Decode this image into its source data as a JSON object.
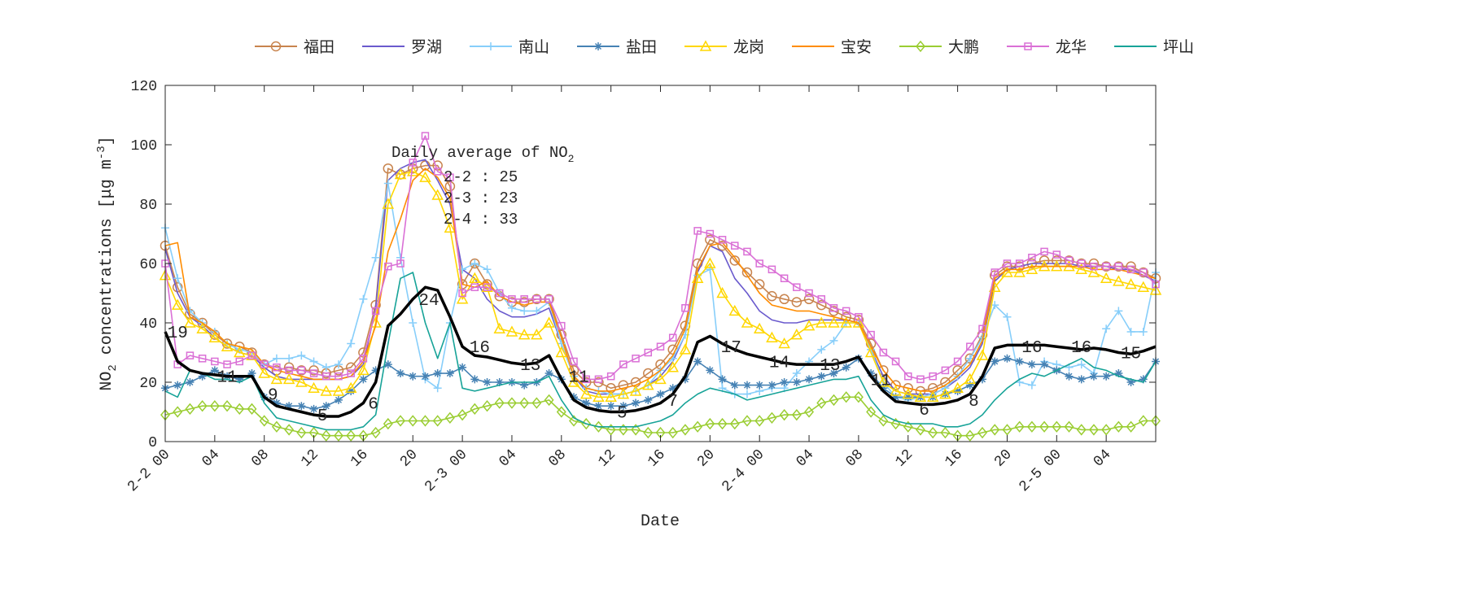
{
  "chart_data": {
    "type": "line",
    "xlabel": "Date",
    "ylabel": "NO2 concentrations [μg m-3]",
    "ylabel_parts": {
      "pre": "NO",
      "sub": "2",
      "mid": " concentrations [μg m",
      "sup": "-3",
      "post": "]"
    },
    "ylim": [
      0,
      120
    ],
    "yticks": [
      0,
      20,
      40,
      60,
      80,
      100,
      120
    ],
    "xlim_hours": [
      0,
      80
    ],
    "xticks": [
      {
        "h": 0,
        "label": "2-2 00"
      },
      {
        "h": 4,
        "label": "04"
      },
      {
        "h": 8,
        "label": "08"
      },
      {
        "h": 12,
        "label": "12"
      },
      {
        "h": 16,
        "label": "16"
      },
      {
        "h": 20,
        "label": "20"
      },
      {
        "h": 24,
        "label": "2-3 00"
      },
      {
        "h": 28,
        "label": "04"
      },
      {
        "h": 32,
        "label": "08"
      },
      {
        "h": 36,
        "label": "12"
      },
      {
        "h": 40,
        "label": "16"
      },
      {
        "h": 44,
        "label": "20"
      },
      {
        "h": 48,
        "label": "2-4 00"
      },
      {
        "h": 52,
        "label": "04"
      },
      {
        "h": 56,
        "label": "08"
      },
      {
        "h": 60,
        "label": "12"
      },
      {
        "h": 64,
        "label": "16"
      },
      {
        "h": 68,
        "label": "20"
      },
      {
        "h": 72,
        "label": "2-5 00"
      },
      {
        "h": 76,
        "label": "04"
      }
    ],
    "grid": false,
    "legend_placement": "top-outside",
    "series": [
      {
        "name": "福田",
        "color": "#C8844E",
        "marker": "circle",
        "values": [
          66,
          52,
          43,
          40,
          36,
          33,
          32,
          30,
          26,
          24,
          25,
          24,
          24,
          23,
          24,
          25,
          30,
          46,
          92,
          90,
          92,
          93,
          93,
          86,
          53,
          60,
          53,
          49,
          47,
          47,
          48,
          48,
          36,
          24,
          20,
          20,
          18,
          19,
          20,
          23,
          26,
          31,
          39,
          60,
          68,
          66,
          61,
          57,
          53,
          49,
          48,
          47,
          48,
          46,
          44,
          42,
          41,
          33,
          24,
          19,
          18,
          17,
          18,
          20,
          24,
          28,
          36,
          56,
          59,
          59,
          60,
          61,
          61,
          61,
          60,
          60,
          59,
          59,
          59,
          57,
          55
        ]
      },
      {
        "name": "罗湖",
        "color": "#6A5ACD",
        "marker": "none",
        "values": [
          65,
          50,
          42,
          39,
          35,
          32,
          30,
          29,
          25,
          22,
          21,
          21,
          21,
          21,
          21,
          22,
          26,
          45,
          88,
          92,
          94,
          95,
          88,
          80,
          58,
          55,
          48,
          44,
          42,
          42,
          43,
          45,
          33,
          22,
          17,
          16,
          16,
          16,
          17,
          19,
          22,
          27,
          36,
          57,
          66,
          64,
          55,
          50,
          44,
          41,
          40,
          40,
          41,
          41,
          41,
          41,
          40,
          31,
          22,
          17,
          16,
          16,
          16,
          18,
          21,
          25,
          33,
          54,
          58,
          59,
          60,
          60,
          60,
          60,
          59,
          59,
          59,
          58,
          58,
          56,
          54
        ]
      },
      {
        "name": "南山",
        "color": "#87CEFA",
        "marker": "plus",
        "values": [
          72,
          55,
          44,
          40,
          37,
          33,
          31,
          30,
          26,
          28,
          28,
          29,
          27,
          25,
          26,
          33,
          48,
          62,
          87,
          62,
          40,
          21,
          18,
          40,
          58,
          60,
          58,
          50,
          45,
          44,
          44,
          47,
          33,
          22,
          18,
          17,
          16,
          16,
          17,
          19,
          24,
          28,
          36,
          56,
          58,
          18,
          16,
          16,
          17,
          18,
          18,
          23,
          27,
          31,
          34,
          40,
          40,
          31,
          20,
          15,
          14,
          15,
          16,
          18,
          22,
          28,
          35,
          46,
          42,
          20,
          19,
          27,
          26,
          25,
          26,
          23,
          38,
          44,
          37,
          37,
          57
        ]
      },
      {
        "name": "盐田",
        "color": "#4682B4",
        "marker": "star",
        "values": [
          18,
          19,
          20,
          22,
          24,
          22,
          21,
          23,
          15,
          13,
          12,
          12,
          11,
          12,
          14,
          17,
          21,
          24,
          26,
          23,
          22,
          22,
          23,
          23,
          25,
          21,
          20,
          20,
          20,
          19,
          20,
          23,
          21,
          15,
          13,
          12,
          12,
          12,
          13,
          14,
          16,
          18,
          21,
          27,
          24,
          21,
          19,
          19,
          19,
          19,
          20,
          20,
          21,
          22,
          23,
          25,
          28,
          23,
          18,
          15,
          15,
          15,
          15,
          16,
          17,
          19,
          21,
          27,
          28,
          27,
          26,
          26,
          24,
          22,
          21,
          22,
          22,
          23,
          20,
          21,
          27
        ]
      },
      {
        "name": "龙岗",
        "color": "#FFD700",
        "marker": "triangle",
        "values": [
          56,
          46,
          40,
          38,
          35,
          32,
          30,
          29,
          23,
          21,
          21,
          20,
          18,
          17,
          17,
          18,
          24,
          40,
          80,
          90,
          91,
          89,
          83,
          72,
          48,
          55,
          52,
          38,
          37,
          36,
          36,
          40,
          30,
          20,
          16,
          15,
          15,
          16,
          17,
          19,
          21,
          25,
          31,
          55,
          60,
          50,
          44,
          40,
          38,
          35,
          33,
          36,
          39,
          40,
          40,
          40,
          40,
          30,
          20,
          17,
          16,
          15,
          15,
          16,
          18,
          21,
          29,
          52,
          57,
          57,
          58,
          59,
          59,
          59,
          58,
          57,
          55,
          54,
          53,
          52,
          51
        ]
      },
      {
        "name": "宝安",
        "color": "#FF8C00",
        "marker": "none",
        "values": [
          66,
          67,
          42,
          40,
          37,
          33,
          32,
          31,
          26,
          24,
          23,
          22,
          21,
          21,
          21,
          22,
          27,
          39,
          64,
          75,
          88,
          92,
          89,
          82,
          53,
          52,
          54,
          49,
          47,
          46,
          47,
          47,
          35,
          22,
          18,
          17,
          17,
          18,
          19,
          21,
          24,
          29,
          38,
          58,
          66,
          67,
          62,
          56,
          50,
          46,
          45,
          44,
          44,
          43,
          42,
          41,
          40,
          32,
          24,
          19,
          18,
          17,
          17,
          19,
          22,
          26,
          34,
          55,
          58,
          58,
          59,
          59,
          59,
          59,
          59,
          58,
          58,
          58,
          57,
          56,
          55
        ]
      },
      {
        "name": "大鹏",
        "color": "#9ACD32",
        "marker": "diamond",
        "values": [
          9,
          10,
          11,
          12,
          12,
          12,
          11,
          11,
          7,
          5,
          4,
          3,
          3,
          2,
          2,
          2,
          2,
          3,
          6,
          7,
          7,
          7,
          7,
          8,
          9,
          11,
          12,
          13,
          13,
          13,
          13,
          14,
          10,
          7,
          6,
          5,
          4,
          4,
          4,
          3,
          3,
          3,
          4,
          5,
          6,
          6,
          6,
          7,
          7,
          8,
          9,
          9,
          10,
          13,
          14,
          15,
          15,
          10,
          7,
          6,
          5,
          4,
          3,
          3,
          2,
          2,
          3,
          4,
          4,
          5,
          5,
          5,
          5,
          5,
          4,
          4,
          4,
          5,
          5,
          7,
          7
        ]
      },
      {
        "name": "龙华",
        "color": "#DA70D6",
        "marker": "square",
        "values": [
          60,
          26,
          29,
          28,
          27,
          26,
          27,
          29,
          26,
          25,
          24,
          24,
          23,
          22,
          22,
          23,
          28,
          44,
          59,
          60,
          94,
          103,
          91,
          89,
          50,
          52,
          52,
          50,
          48,
          48,
          48,
          48,
          39,
          27,
          21,
          21,
          22,
          26,
          28,
          30,
          32,
          35,
          45,
          71,
          70,
          68,
          66,
          64,
          60,
          58,
          55,
          52,
          50,
          48,
          45,
          44,
          42,
          36,
          30,
          27,
          22,
          21,
          22,
          24,
          27,
          32,
          38,
          57,
          60,
          60,
          62,
          64,
          63,
          61,
          60,
          59,
          59,
          59,
          58,
          57,
          53
        ]
      },
      {
        "name": "坪山",
        "color": "#17A398",
        "marker": "none",
        "values": [
          17,
          15,
          24,
          23,
          21,
          21,
          20,
          22,
          13,
          8,
          7,
          6,
          5,
          4,
          4,
          4,
          5,
          9,
          33,
          55,
          57,
          40,
          28,
          40,
          18,
          17,
          18,
          19,
          20,
          20,
          20,
          22,
          14,
          8,
          6,
          5,
          5,
          5,
          5,
          6,
          7,
          9,
          13,
          16,
          18,
          17,
          16,
          14,
          15,
          16,
          17,
          18,
          19,
          20,
          21,
          21,
          22,
          14,
          9,
          7,
          6,
          6,
          6,
          5,
          5,
          6,
          9,
          14,
          18,
          21,
          23,
          22,
          24,
          26,
          28,
          25,
          24,
          22,
          21,
          20,
          27
        ]
      },
      {
        "color": "#000000",
        "marker": "none",
        "values": [
          37,
          27,
          24,
          23,
          22.5,
          22,
          22,
          22,
          15,
          12,
          11,
          10,
          9,
          8.5,
          8.5,
          10,
          13,
          20,
          39,
          43,
          48,
          52,
          51,
          42,
          32,
          29,
          28.5,
          27.5,
          26.5,
          26,
          26.5,
          29,
          21,
          14,
          11.5,
          10.5,
          10,
          10,
          10.5,
          11.5,
          13,
          16,
          22,
          33.5,
          35.5,
          33,
          31,
          29.5,
          28.5,
          27.5,
          26.5,
          26,
          26,
          26,
          26,
          27,
          28.5,
          22,
          17,
          13.5,
          13,
          12.5,
          12.5,
          13,
          14,
          16,
          22,
          31.5,
          32.5,
          32.5,
          32.5,
          32.5,
          32,
          31.5,
          31,
          31.5,
          31,
          30,
          29.5,
          30.5,
          32
        ]
      }
    ],
    "point_labels": [
      {
        "h": 1,
        "v": 37,
        "text": "19"
      },
      {
        "h": 5,
        "v": 22,
        "text": "11"
      },
      {
        "h": 8.7,
        "v": 16,
        "text": "9"
      },
      {
        "h": 12.7,
        "v": 9,
        "text": "5"
      },
      {
        "h": 16.8,
        "v": 13,
        "text": "6"
      },
      {
        "h": 21.3,
        "v": 48,
        "text": "24"
      },
      {
        "h": 25.4,
        "v": 32,
        "text": "16"
      },
      {
        "h": 29.5,
        "v": 26,
        "text": "13"
      },
      {
        "h": 33.4,
        "v": 22,
        "text": "11"
      },
      {
        "h": 36.9,
        "v": 10,
        "text": "5"
      },
      {
        "h": 41,
        "v": 14,
        "text": "7"
      },
      {
        "h": 45.7,
        "v": 32,
        "text": "17"
      },
      {
        "h": 49.6,
        "v": 27,
        "text": "14"
      },
      {
        "h": 53.7,
        "v": 26,
        "text": "13"
      },
      {
        "h": 57.8,
        "v": 21,
        "text": "11"
      },
      {
        "h": 61.3,
        "v": 11,
        "text": "6"
      },
      {
        "h": 65.3,
        "v": 14,
        "text": "8"
      },
      {
        "h": 70,
        "v": 32,
        "text": "16"
      },
      {
        "h": 74,
        "v": 32,
        "text": "16"
      },
      {
        "h": 78,
        "v": 30,
        "text": "15"
      }
    ],
    "annotation": {
      "title_pre": "Daily average of NO",
      "title_sub": "2",
      "lines": [
        "2-2 : 25",
        "2-3 : 23",
        "2-4 : 33"
      ]
    }
  }
}
